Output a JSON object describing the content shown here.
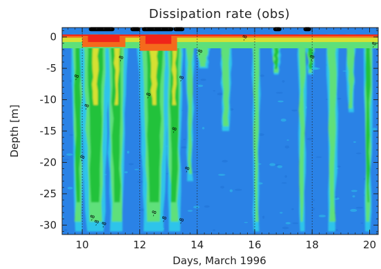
{
  "chart_data": {
    "type": "heatmap",
    "title": "Dissipation rate (obs)",
    "xlabel": "Days, March 1996",
    "ylabel": "Depth [m]",
    "xlim": [
      9.3,
      20.3
    ],
    "ylim": [
      -31.5,
      1.5
    ],
    "xticks": [
      10,
      12,
      14,
      16,
      18,
      20
    ],
    "yticks": [
      0,
      -5,
      -10,
      -15,
      -20,
      -25,
      -30
    ],
    "xtick_labels": [
      "10",
      "12",
      "14",
      "16",
      "18",
      "20"
    ],
    "ytick_labels": [
      "0",
      "-5",
      "-10",
      "-15",
      "-20",
      "-25",
      "-30"
    ],
    "day_lines": [
      10,
      12,
      14,
      16,
      18
    ],
    "colors": {
      "deep": "#1f73d6",
      "background": "#2a82e6",
      "cyan": "#2ec4ea",
      "lightgreen": "#5ee07a",
      "green": "#24c23a",
      "yellow": "#d6e033",
      "orange": "#f46a1c",
      "red": "#f0241a",
      "black": "#000000"
    },
    "surface_bars": [
      {
        "start": 10.3,
        "end": 11.05
      },
      {
        "start": 11.75,
        "end": 11.95
      },
      {
        "start": 12.15,
        "end": 13.1
      },
      {
        "start": 13.25,
        "end": 13.48
      },
      {
        "start": 16.72,
        "end": 16.86
      },
      {
        "start": 17.77,
        "end": 17.89
      }
    ],
    "mixing_events": [
      {
        "day": 9.85,
        "width": 0.28,
        "depth": -31,
        "intensity": 0.55
      },
      {
        "day": 10.45,
        "width": 0.55,
        "depth": -31,
        "intensity": 1.0
      },
      {
        "day": 11.2,
        "width": 0.4,
        "depth": -31,
        "intensity": 0.9
      },
      {
        "day": 12.5,
        "width": 0.6,
        "depth": -31,
        "intensity": 1.0
      },
      {
        "day": 13.2,
        "width": 0.35,
        "depth": -31,
        "intensity": 0.85
      },
      {
        "day": 13.75,
        "width": 0.2,
        "depth": -23,
        "intensity": 0.45
      },
      {
        "day": 14.2,
        "width": 0.4,
        "depth": -5,
        "intensity": 0.4
      },
      {
        "day": 15.0,
        "width": 0.3,
        "depth": -15,
        "intensity": 0.35
      },
      {
        "day": 16.05,
        "width": 0.2,
        "depth": -31,
        "intensity": 0.45
      },
      {
        "day": 16.75,
        "width": 0.22,
        "depth": -6,
        "intensity": 0.6
      },
      {
        "day": 17.65,
        "width": 0.2,
        "depth": -31,
        "intensity": 0.45
      },
      {
        "day": 17.95,
        "width": 0.22,
        "depth": -6,
        "intensity": 0.55
      },
      {
        "day": 18.7,
        "width": 0.3,
        "depth": -31,
        "intensity": 0.4
      },
      {
        "day": 19.35,
        "width": 0.25,
        "depth": -12,
        "intensity": 0.4
      },
      {
        "day": 19.95,
        "width": 0.2,
        "depth": -31,
        "intensity": 0.5
      }
    ],
    "contour_labels": [
      {
        "day": 9.85,
        "depth": -6.6,
        "text": "-8"
      },
      {
        "day": 10.05,
        "depth": -19.5,
        "text": "-8"
      },
      {
        "day": 10.2,
        "depth": -11.3,
        "text": "-8"
      },
      {
        "day": 10.4,
        "depth": -29.0,
        "text": "-8"
      },
      {
        "day": 10.55,
        "depth": -29.8,
        "text": "-8"
      },
      {
        "day": 10.8,
        "depth": -30.1,
        "text": "-8"
      },
      {
        "day": 11.4,
        "depth": -3.6,
        "text": "-8"
      },
      {
        "day": 12.35,
        "depth": -9.5,
        "text": "-8"
      },
      {
        "day": 12.55,
        "depth": -28.3,
        "text": "-8"
      },
      {
        "day": 12.9,
        "depth": -29.2,
        "text": "-8"
      },
      {
        "day": 13.25,
        "depth": -15.0,
        "text": "-8"
      },
      {
        "day": 13.5,
        "depth": -6.8,
        "text": "-8"
      },
      {
        "day": 13.5,
        "depth": -29.5,
        "text": "-8"
      },
      {
        "day": 13.7,
        "depth": -21.3,
        "text": "-8"
      },
      {
        "day": 14.15,
        "depth": -2.6,
        "text": "-8"
      },
      {
        "day": 15.7,
        "depth": -0.3,
        "text": "-8"
      },
      {
        "day": 18.05,
        "depth": -3.5,
        "text": "-8"
      },
      {
        "day": 20.2,
        "depth": -1.4,
        "text": "-8"
      }
    ]
  }
}
